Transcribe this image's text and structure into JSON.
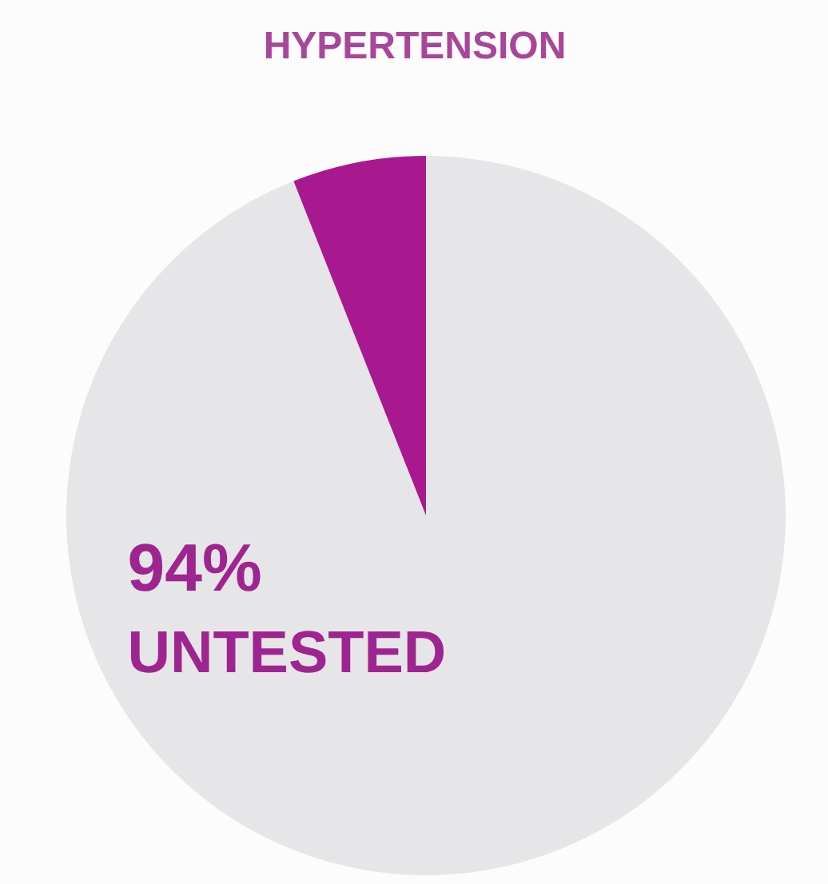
{
  "chart_data": {
    "type": "pie",
    "title": "HYPERTENSION",
    "categories": [
      "UNTESTED",
      null
    ],
    "values": [
      94,
      6
    ],
    "colors": [
      "#e6e6e8",
      "#a8198f"
    ],
    "value_labels": [
      "94%",
      null
    ]
  }
}
